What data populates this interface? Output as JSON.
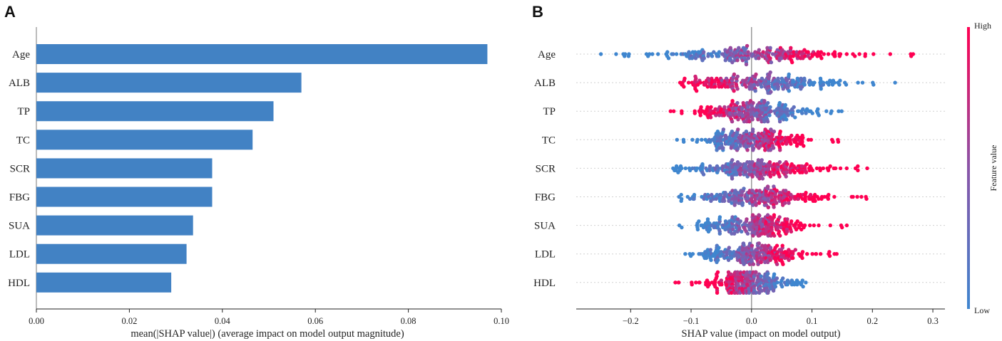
{
  "chart_data": [
    {
      "panel_label": "A",
      "type": "bar",
      "orientation": "horizontal",
      "categories": [
        "Age",
        "ALB",
        "TP",
        "TC",
        "SCR",
        "FBG",
        "SUA",
        "LDL",
        "HDL"
      ],
      "values": [
        0.097,
        0.057,
        0.051,
        0.0465,
        0.0378,
        0.0378,
        0.0337,
        0.0323,
        0.029
      ],
      "xlabel": "mean(|SHAP value|) (average impact on model output magnitude)",
      "xlim": [
        0.0,
        0.1
      ],
      "xticks": [
        0.0,
        0.02,
        0.04,
        0.06,
        0.08,
        0.1
      ],
      "xtick_labels": [
        "0.00",
        "0.02",
        "0.04",
        "0.06",
        "0.08",
        "0.10"
      ],
      "bar_color": "#4282c4"
    },
    {
      "panel_label": "B",
      "type": "scatter",
      "subtype": "beeswarm",
      "categories": [
        "Age",
        "ALB",
        "TP",
        "TC",
        "SCR",
        "FBG",
        "SUA",
        "LDL",
        "HDL"
      ],
      "xlabel": "SHAP value (impact on model output)",
      "xlim": [
        -0.29,
        0.32
      ],
      "xticks": [
        -0.2,
        -0.1,
        0.0,
        0.1,
        0.2,
        0.3
      ],
      "xtick_labels": [
        "−0.2",
        "−0.1",
        "0.0",
        "0.1",
        "0.2",
        "0.3"
      ],
      "feature_ranges": {
        "Age": [
          -0.27,
          0.29
        ],
        "ALB": [
          -0.12,
          0.24
        ],
        "TP": [
          -0.15,
          0.175
        ],
        "TC": [
          -0.125,
          0.17
        ],
        "SCR": [
          -0.13,
          0.205
        ],
        "FBG": [
          -0.12,
          0.21
        ],
        "SUA": [
          -0.12,
          0.165
        ],
        "LDL": [
          -0.11,
          0.165
        ],
        "HDL": [
          -0.13,
          0.1
        ]
      },
      "points_per_feature": 240,
      "colorbar": {
        "label": "Feature value",
        "high_label": "High",
        "low_label": "Low",
        "high_color": "#ff0052",
        "low_color": "#3f86cf"
      }
    }
  ]
}
